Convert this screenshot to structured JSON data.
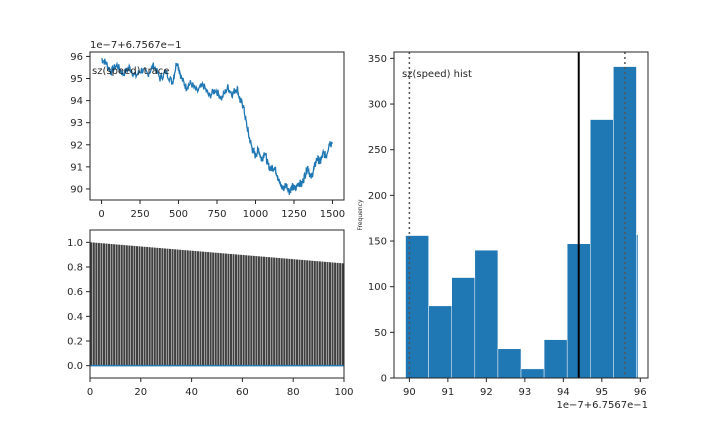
{
  "chart_data": [
    {
      "type": "line",
      "title": "sz(speed) trace",
      "offset_label": "1e−7+6.7567e−1",
      "xlim": [
        -75,
        1575
      ],
      "ylim": [
        89.5,
        96.2
      ],
      "xticks": [
        "0",
        "250",
        "500",
        "750",
        "1000",
        "1250",
        "1500"
      ],
      "yticks": [
        "90",
        "91",
        "92",
        "93",
        "94",
        "95",
        "96"
      ],
      "color": "#1f77b4",
      "points": [
        [
          0,
          95.9
        ],
        [
          30,
          95.7
        ],
        [
          60,
          95.3
        ],
        [
          100,
          95.6
        ],
        [
          140,
          95.2
        ],
        [
          180,
          95.5
        ],
        [
          220,
          95.1
        ],
        [
          260,
          95.4
        ],
        [
          300,
          95.2
        ],
        [
          340,
          95.6
        ],
        [
          380,
          95.0
        ],
        [
          420,
          95.3
        ],
        [
          460,
          94.8
        ],
        [
          490,
          95.8
        ],
        [
          520,
          95.0
        ],
        [
          550,
          94.6
        ],
        [
          580,
          94.8
        ],
        [
          620,
          94.4
        ],
        [
          660,
          94.7
        ],
        [
          700,
          94.2
        ],
        [
          740,
          94.5
        ],
        [
          780,
          94.1
        ],
        [
          820,
          94.6
        ],
        [
          850,
          94.3
        ],
        [
          880,
          94.6
        ],
        [
          900,
          94.0
        ],
        [
          920,
          93.8
        ],
        [
          940,
          93.0
        ],
        [
          960,
          92.3
        ],
        [
          980,
          91.8
        ],
        [
          1000,
          91.5
        ],
        [
          1020,
          91.8
        ],
        [
          1040,
          91.3
        ],
        [
          1060,
          91.7
        ],
        [
          1080,
          91.1
        ],
        [
          1100,
          90.9
        ],
        [
          1120,
          91.0
        ],
        [
          1140,
          90.7
        ],
        [
          1160,
          90.2
        ],
        [
          1180,
          90.0
        ],
        [
          1200,
          90.2
        ],
        [
          1220,
          89.9
        ],
        [
          1240,
          90.1
        ],
        [
          1260,
          90.0
        ],
        [
          1280,
          90.3
        ],
        [
          1300,
          90.2
        ],
        [
          1320,
          90.6
        ],
        [
          1340,
          91.0
        ],
        [
          1360,
          90.5
        ],
        [
          1380,
          90.9
        ],
        [
          1400,
          91.4
        ],
        [
          1420,
          91.2
        ],
        [
          1440,
          91.6
        ],
        [
          1460,
          91.5
        ],
        [
          1480,
          92.1
        ],
        [
          1500,
          92.1
        ]
      ]
    },
    {
      "type": "bar",
      "title": "",
      "xlim": [
        0,
        100
      ],
      "ylim": [
        -0.1,
        1.1
      ],
      "xticks": [
        "0",
        "20",
        "40",
        "60",
        "80",
        "100"
      ],
      "yticks": [
        "0.0",
        "0.2",
        "0.4",
        "0.6",
        "0.8",
        "1.0"
      ],
      "bar_color": "#404040",
      "zero_line_color": "#1f77b4",
      "lags": 100,
      "start_value": 1.0,
      "end_value": 0.83
    },
    {
      "type": "bar",
      "title": "sz(speed) hist",
      "ylabel": "Frequency",
      "offset_label": "1e−7+6.7567e−1",
      "xlim": [
        89.6,
        96.2
      ],
      "ylim": [
        0,
        357
      ],
      "xticks": [
        "90",
        "91",
        "92",
        "93",
        "94",
        "95",
        "96"
      ],
      "yticks": [
        "0",
        "50",
        "100",
        "150",
        "200",
        "250",
        "300",
        "350"
      ],
      "color": "#1f77b4",
      "bins": [
        {
          "x0": 89.9,
          "x1": 90.5,
          "count": 156
        },
        {
          "x0": 90.5,
          "x1": 91.1,
          "count": 79
        },
        {
          "x0": 91.1,
          "x1": 91.7,
          "count": 110
        },
        {
          "x0": 91.7,
          "x1": 92.3,
          "count": 140
        },
        {
          "x0": 92.3,
          "x1": 92.9,
          "count": 32
        },
        {
          "x0": 92.9,
          "x1": 93.5,
          "count": 10
        },
        {
          "x0": 93.5,
          "x1": 94.1,
          "count": 42
        },
        {
          "x0": 94.1,
          "x1": 94.7,
          "count": 147
        },
        {
          "x0": 94.7,
          "x1": 95.3,
          "count": 283
        },
        {
          "x0": 95.3,
          "x1": 95.9,
          "count": 341
        },
        {
          "x0": 95.9,
          "x1": 96.5,
          "count": 157
        }
      ],
      "mean_line": 94.4,
      "dotted_lines": [
        90.0,
        95.6
      ]
    }
  ]
}
